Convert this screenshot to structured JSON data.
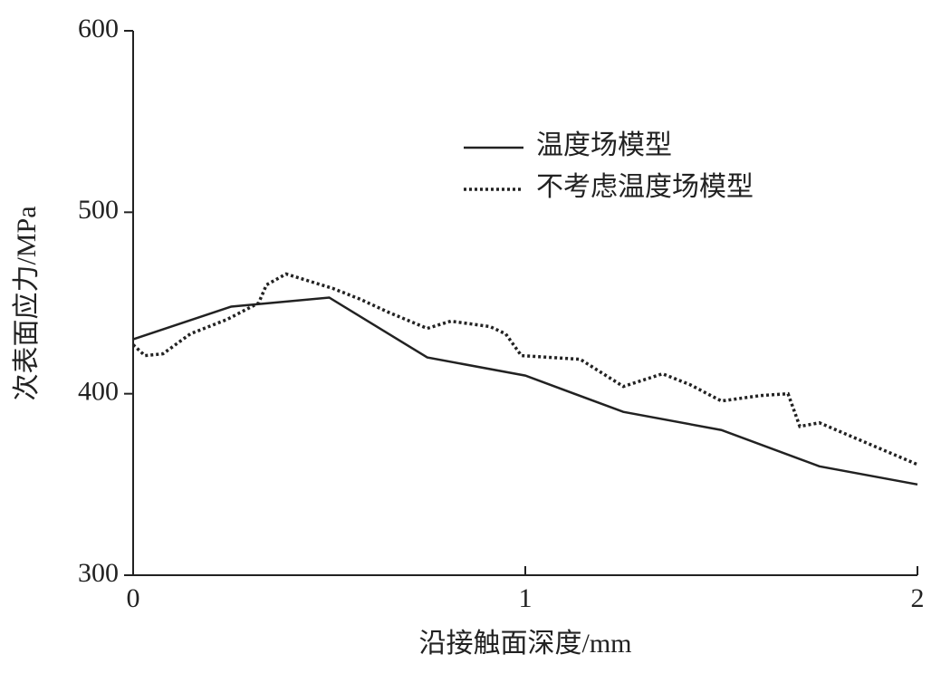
{
  "chart_data": {
    "type": "line",
    "x_label": "沿接触面深度/mm",
    "y_label": "次表面应力/MPa",
    "xlim": [
      0,
      2
    ],
    "xticks": [
      0,
      1,
      2
    ],
    "ylim": [
      300,
      600
    ],
    "yticks": [
      300,
      400,
      500,
      600
    ],
    "legend": "upper center",
    "series": [
      {
        "name": "温度场模型",
        "color": "#222222",
        "style": "solid",
        "x": [
          0,
          0.25,
          0.5,
          0.75,
          1.0,
          1.25,
          1.5,
          1.75,
          2.0
        ],
        "values": [
          430,
          448,
          453,
          420,
          410,
          390,
          380,
          360,
          350
        ]
      },
      {
        "name": "不考虑温度场模型",
        "color": "#222222",
        "style": "dotted",
        "x": [
          0,
          0.03,
          0.076,
          0.146,
          0.24,
          0.32,
          0.34,
          0.39,
          0.45,
          0.51,
          0.58,
          0.65,
          0.75,
          0.81,
          0.91,
          0.95,
          0.99,
          1.14,
          1.25,
          1.35,
          1.42,
          1.5,
          1.6,
          1.67,
          1.7,
          1.75,
          1.88,
          2.0
        ],
        "values": [
          427,
          421,
          422,
          433,
          441,
          450,
          460,
          466,
          462,
          458,
          452,
          445,
          436,
          440,
          437,
          433,
          421,
          419,
          404,
          411,
          405,
          396,
          399,
          400,
          382,
          384,
          372,
          361
        ]
      }
    ]
  }
}
